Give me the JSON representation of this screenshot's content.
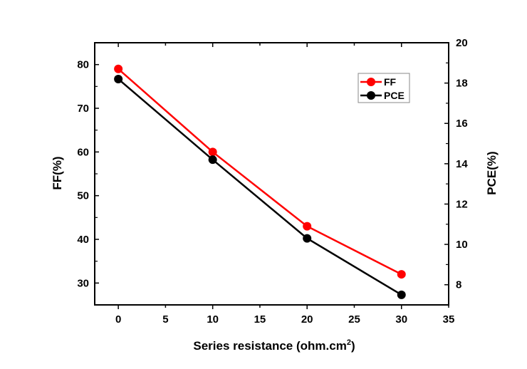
{
  "chart_data": {
    "type": "line",
    "title": "",
    "xlabel": "Series resistance (ohm.cm",
    "xlabel_sup": "2",
    "xlabel_end": ")",
    "ylabel_left": "FF(%)",
    "ylabel_right": "PCE(%)",
    "xlim": [
      -2.5,
      35
    ],
    "ylim_left": [
      25,
      85
    ],
    "ylim_right": [
      7,
      20
    ],
    "x_ticks": [
      "0",
      "5",
      "10",
      "15",
      "20",
      "25",
      "30",
      "35"
    ],
    "y_left_ticks": [
      "30",
      "40",
      "50",
      "60",
      "70",
      "80"
    ],
    "y_right_ticks": [
      "8",
      "10",
      "12",
      "14",
      "16",
      "18",
      "20"
    ],
    "x": [
      0,
      10,
      20,
      30
    ],
    "series": [
      {
        "name": "FF",
        "axis": "left",
        "color": "#ff0000",
        "values": [
          79,
          60,
          43,
          32
        ]
      },
      {
        "name": "PCE",
        "axis": "right",
        "color": "#000000",
        "values": [
          18.2,
          14.2,
          10.3,
          7.5
        ]
      }
    ],
    "grid": false,
    "legend_position": "top-right"
  }
}
